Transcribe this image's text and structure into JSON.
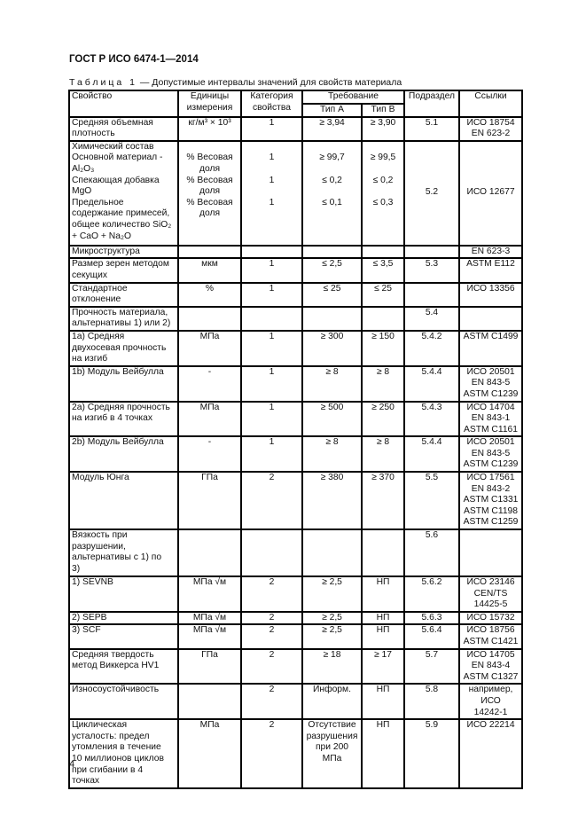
{
  "document": {
    "title": "ГОСТ Р ИСО 6474-1—2014",
    "caption_label": "Таблица 1",
    "caption_text": " — Допустимые интервалы значений для свойств материала",
    "page_number": "4"
  },
  "table": {
    "headers": {
      "property": "Свойство",
      "units": "Единицы\nизмерения",
      "category": "Категория\nсвойства",
      "requirement": "Требование",
      "type_a": "Тип А",
      "type_b": "Тип В",
      "subsection": "Подраздел",
      "references": "Ссылки"
    },
    "rows": [
      {
        "h": 27,
        "cells": [
          "Средняя объемная\nплотность",
          "кг/м³ × 10³",
          "1",
          "≥ 3,94",
          "≥ 3,90",
          "5.1",
          "ИСО 18754\nEN 623-2"
        ]
      },
      {
        "h": 118,
        "mid": true,
        "cells": [
          "Химический состав\nОсновной материал -\nAl₂O₃\nСпекающая добавка\nMgO\nПредельное\nсодержание примесей,\nобщее количество SiO₂\n+ CaO + Na₂O",
          "\n% Весовая\nдоля\n% Весовая\nдоля\n% Весовая\nдоля",
          "\n1\n\n1\n\n1",
          "\n≥ 99,7\n\n≤ 0,2\n\n≤ 0,1",
          "\n≥ 99,5\n\n≤ 0,2\n\n≤ 0,3",
          "5.2",
          "ИСО 12677"
        ]
      },
      {
        "h": 12,
        "cells": [
          "Микроструктура",
          "",
          "",
          "",
          "",
          "",
          "EN 623-3"
        ]
      },
      {
        "h": 26,
        "cells": [
          "Размер зерен методом\nсекущих",
          "мкм",
          "1",
          "≤ 2,5",
          "≤ 3,5",
          "5.3",
          "ASTM E112"
        ]
      },
      {
        "h": 26,
        "cells": [
          "Стандартное\nотклонение",
          "%",
          "1",
          "≤ 25",
          "≤ 25",
          "",
          "ИСО 13356"
        ]
      },
      {
        "h": 27,
        "cells": [
          "Прочность материала,\nальтернативы 1) или 2)",
          "",
          "",
          "",
          "",
          "5.4",
          ""
        ]
      },
      {
        "h": 38,
        "cells": [
          "1а) Средняя\nдвухосевая прочность\nна изгиб",
          "МПа",
          "1",
          "≥ 300",
          "≥ 150",
          "5.4.2",
          "ASTM C1499"
        ]
      },
      {
        "h": 39,
        "cells": [
          "1b) Модуль Вейбулла",
          "-",
          "1",
          "≥ 8",
          "≥ 8",
          "5.4.4",
          "ИСО 20501\nEN 843-5\nASTM C1239"
        ]
      },
      {
        "h": 39,
        "cells": [
          "2а) Средняя прочность\nна изгиб в 4 точках",
          "МПа",
          "1",
          "≥ 500",
          "≥ 250",
          "5.4.3",
          "ИСО 14704\nEN 843-1\nASTM C1161"
        ]
      },
      {
        "h": 39,
        "cells": [
          "2b) Модуль Вейбулла",
          "-",
          "1",
          "≥ 8",
          "≥ 8",
          "5.4.4",
          "ИСО 20501\nEN 843-5\nASTM C1239"
        ]
      },
      {
        "h": 65,
        "cells": [
          "Модуль Юнга",
          "ГПа",
          "2",
          "≥ 380",
          "≥ 370",
          "5.5",
          "ИСО 17561\nEN 843-2\nASTM C1331\nASTM C1198\nASTM C1259"
        ]
      },
      {
        "h": 53,
        "cells": [
          "Вязкость при\nразрушении,\nальтернативы с 1) по\n3)",
          "",
          "",
          "",
          "",
          "5.6",
          ""
        ]
      },
      {
        "h": 27,
        "cells": [
          "1) SEVNB",
          "МПа √м",
          "2",
          "≥ 2,5",
          "НП",
          "5.6.2",
          "ИСО 23146\nCEN/TS 14425-5"
        ]
      },
      {
        "h": 12,
        "cells": [
          "2) SEPB",
          "МПа √м",
          "2",
          "≥ 2,5",
          "НП",
          "5.6.3",
          "ИСО 15732"
        ]
      },
      {
        "h": 26,
        "cells": [
          "3) SCF",
          "МПа √м",
          "2",
          "≥ 2,5",
          "НП",
          "5.6.4",
          "ИСО 18756\nASTM C1421"
        ]
      },
      {
        "h": 39,
        "cells": [
          "Средняя твердость\nметод Виккерса HV1",
          "ГПа",
          "2",
          "≥ 18",
          "≥ 17",
          "5.7",
          "ИСО 14705\nEN 843-4\nASTM C1327"
        ]
      },
      {
        "h": 27,
        "cells": [
          "Износоустойчивость",
          "",
          "2",
          "Информ.",
          "НП",
          "5.8",
          "например, ИСО\n14242-1"
        ]
      },
      {
        "h": 78,
        "cells": [
          "Циклическая\nусталость: предел\nутомления в течение\n10 миллионов циклов\nпри сгибании в 4\nточках",
          "МПа",
          "2",
          "Отсутствие\nразрушения\nпри 200 МПа",
          "НП",
          "5.9",
          "ИСО 22214"
        ]
      }
    ]
  }
}
